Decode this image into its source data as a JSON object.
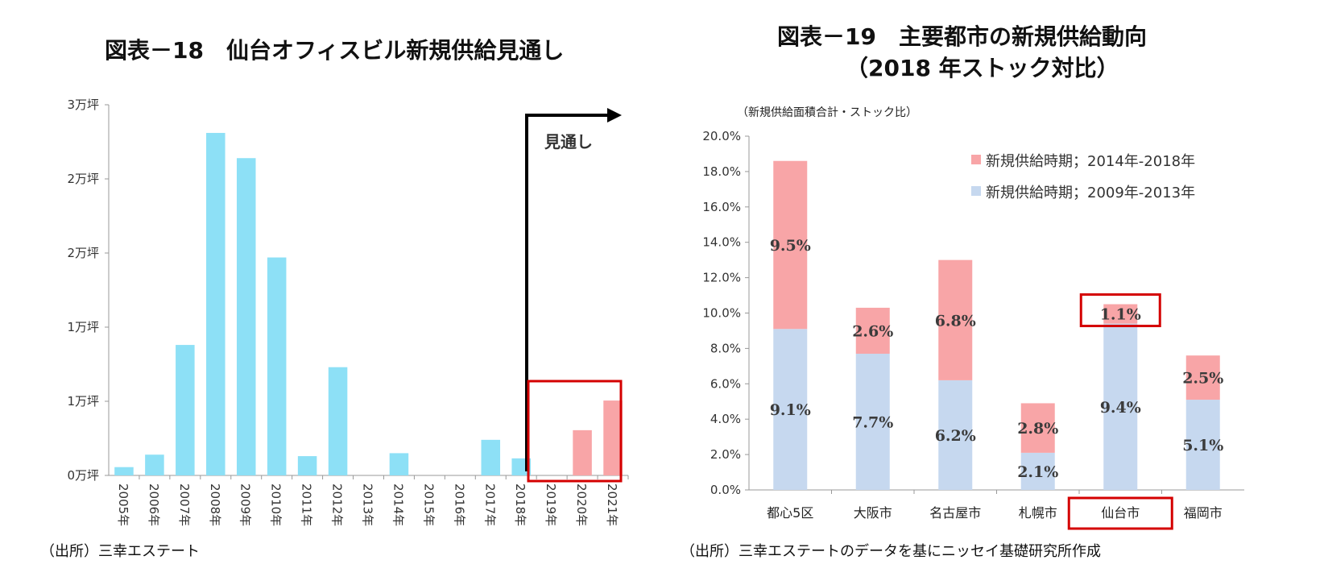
{
  "chart_data": [
    {
      "type": "bar",
      "title": "図表－18　仙台オフィスビル新規供給見通し",
      "categories": [
        "2005年",
        "2006年",
        "2007年",
        "2008年",
        "2009年",
        "2010年",
        "2011年",
        "2012年",
        "2013年",
        "2014年",
        "2015年",
        "2016年",
        "2017年",
        "2018年",
        "2019年",
        "2020年",
        "2021年"
      ],
      "values": [
        560,
        1400,
        8800,
        23100,
        21400,
        14700,
        1300,
        7300,
        0,
        1500,
        0,
        0,
        2400,
        1150,
        0,
        3050,
        5050
      ],
      "ytick_labels": [
        "0万坪",
        "1万坪",
        "1万坪",
        "2万坪",
        "2万坪",
        "3万坪"
      ],
      "ylim": [
        0,
        25000
      ],
      "forecast_label": "見通し",
      "forecast_from": "2019年",
      "colors": {
        "actual": "#8de0f6",
        "forecast": "#f8a5a7",
        "highlight": "#d40000"
      },
      "source": "（出所）三幸エステート"
    },
    {
      "type": "bar",
      "stacked": true,
      "title": "図表－19　主要都市の新規供給動向",
      "subtitle": "（2018 年ストック対比）",
      "ylabel": "（新規供給面積合計・ストック比）",
      "categories": [
        "都心5区",
        "大阪市",
        "名古屋市",
        "札幌市",
        "仙台市",
        "福岡市"
      ],
      "series": [
        {
          "name": "新規供給時期；2009年-2013年",
          "values": [
            9.1,
            7.7,
            6.2,
            2.1,
            9.4,
            5.1
          ],
          "labels": [
            "9.1%",
            "7.7%",
            "6.2%",
            "2.1%",
            "9.4%",
            "5.1%"
          ],
          "color": "#c6d8ef"
        },
        {
          "name": "新規供給時期；2014年-2018年",
          "values": [
            9.5,
            2.6,
            6.8,
            2.8,
            1.1,
            2.5
          ],
          "labels": [
            "9.5%",
            "2.6%",
            "6.8%",
            "2.8%",
            "1.1%",
            "2.5%"
          ],
          "color": "#f8a5a7"
        }
      ],
      "ylim": [
        0,
        20
      ],
      "ytick_labels": [
        "0.0%",
        "2.0%",
        "4.0%",
        "6.0%",
        "8.0%",
        "10.0%",
        "12.0%",
        "14.0%",
        "16.0%",
        "18.0%",
        "20.0%"
      ],
      "legend_position": "top-right",
      "highlight_category": "仙台市",
      "highlight_color": "#d40000",
      "source": "（出所）三幸エステートのデータを基にニッセイ基礎研究所作成"
    }
  ]
}
